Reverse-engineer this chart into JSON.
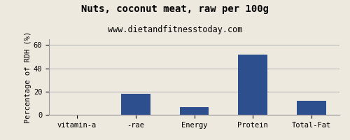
{
  "title": "Nuts, coconut meat, raw per 100g",
  "subtitle": "www.dietandfitnesstoday.com",
  "categories": [
    "vitamin-a",
    "-rae",
    "Energy",
    "Protein",
    "Total-Fat"
  ],
  "values": [
    0,
    18,
    6.5,
    52,
    12
  ],
  "bar_color": "#2d4f8e",
  "ylabel": "Percentage of RDH (%)",
  "ylim": [
    0,
    65
  ],
  "yticks": [
    0,
    20,
    40,
    60
  ],
  "background_color": "#ede9df",
  "plot_bg_color": "#ede9df",
  "grid_color": "#bbbbbb",
  "title_fontsize": 10,
  "subtitle_fontsize": 8.5,
  "ylabel_fontsize": 7.5,
  "tick_fontsize": 7.5
}
